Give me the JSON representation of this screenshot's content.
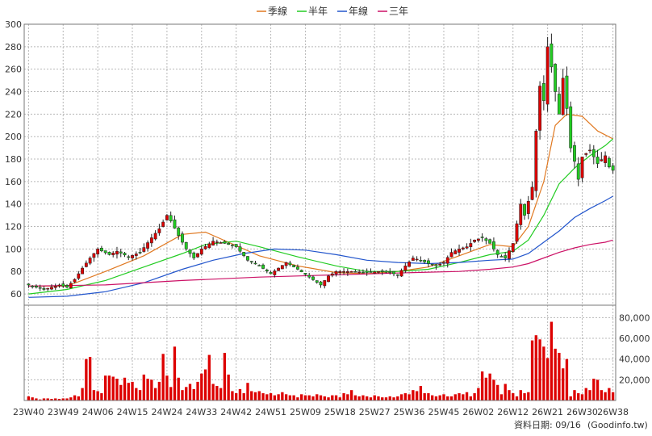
{
  "chart_data": [
    {
      "type": "candlestick",
      "legend": [
        {
          "name": "季線",
          "color": "#e07820"
        },
        {
          "name": "半年",
          "color": "#22cc22"
        },
        {
          "name": "年線",
          "color": "#2255cc"
        },
        {
          "name": "三年",
          "color": "#cc1166"
        }
      ],
      "ylim": [
        50,
        300
      ],
      "yticks": [
        60,
        80,
        100,
        120,
        140,
        160,
        180,
        200,
        220,
        240,
        260,
        280,
        300
      ],
      "grid": true,
      "up_color": "#dd0000",
      "down_color": "#22cc22",
      "x_ticks": [
        {
          "label": "23W40",
          "week": 0
        },
        {
          "label": "23W49",
          "week": 9
        },
        {
          "label": "24W06",
          "week": 18
        },
        {
          "label": "24W15",
          "week": 27
        },
        {
          "label": "24W24",
          "week": 36
        },
        {
          "label": "24W33",
          "week": 45
        },
        {
          "label": "24W42",
          "week": 54
        },
        {
          "label": "24W51",
          "week": 63
        },
        {
          "label": "25W09",
          "week": 72
        },
        {
          "label": "25W18",
          "week": 81
        },
        {
          "label": "25W27",
          "week": 90
        },
        {
          "label": "25W36",
          "week": 99
        },
        {
          "label": "25W45",
          "week": 108
        },
        {
          "label": "26W02",
          "week": 117
        },
        {
          "label": "26W12",
          "week": 126
        },
        {
          "label": "26W21",
          "week": 135
        },
        {
          "label": "26W30",
          "week": 144
        },
        {
          "label": "26W38",
          "week": 152
        }
      ],
      "close_anchors": [
        [
          0,
          68
        ],
        [
          4,
          64
        ],
        [
          8,
          68
        ],
        [
          10,
          66
        ],
        [
          12,
          73
        ],
        [
          14,
          83
        ],
        [
          16,
          92
        ],
        [
          18,
          100
        ],
        [
          21,
          95
        ],
        [
          23,
          98
        ],
        [
          26,
          93
        ],
        [
          29,
          97
        ],
        [
          32,
          110
        ],
        [
          34,
          118
        ],
        [
          36,
          130
        ],
        [
          37,
          125
        ],
        [
          39,
          112
        ],
        [
          41,
          100
        ],
        [
          43,
          92
        ],
        [
          45,
          100
        ],
        [
          48,
          107
        ],
        [
          51,
          105
        ],
        [
          54,
          102
        ],
        [
          57,
          90
        ],
        [
          60,
          85
        ],
        [
          63,
          78
        ],
        [
          67,
          88
        ],
        [
          70,
          82
        ],
        [
          73,
          75
        ],
        [
          76,
          68
        ],
        [
          78,
          76
        ],
        [
          80,
          80
        ],
        [
          84,
          80
        ],
        [
          88,
          79
        ],
        [
          91,
          80
        ],
        [
          94,
          79
        ],
        [
          96,
          77
        ],
        [
          98,
          85
        ],
        [
          100,
          92
        ],
        [
          102,
          90
        ],
        [
          104,
          87
        ],
        [
          106,
          85
        ],
        [
          108,
          88
        ],
        [
          110,
          97
        ],
        [
          112,
          100
        ],
        [
          114,
          102
        ],
        [
          116,
          108
        ],
        [
          118,
          110
        ],
        [
          120,
          105
        ],
        [
          122,
          95
        ],
        [
          124,
          92
        ],
        [
          126,
          105
        ],
        [
          128,
          140
        ],
        [
          129,
          130
        ],
        [
          131,
          155
        ],
        [
          132,
          205
        ],
        [
          133,
          245
        ],
        [
          134,
          232
        ],
        [
          135,
          280
        ],
        [
          136,
          262
        ],
        [
          137,
          240
        ],
        [
          138,
          220
        ],
        [
          139,
          252
        ],
        [
          140,
          225
        ],
        [
          141,
          190
        ],
        [
          142,
          178
        ],
        [
          143,
          162
        ],
        [
          144,
          182
        ],
        [
          146,
          188
        ],
        [
          148,
          176
        ],
        [
          150,
          183
        ],
        [
          151,
          173
        ],
        [
          152,
          170
        ]
      ],
      "ma_lines": [
        {
          "name": "季線",
          "color": "#e07820",
          "points": [
            [
              0,
              67
            ],
            [
              10,
              67
            ],
            [
              20,
              80
            ],
            [
              30,
              94
            ],
            [
              40,
              113
            ],
            [
              46,
              115
            ],
            [
              52,
              106
            ],
            [
              60,
              94
            ],
            [
              70,
              85
            ],
            [
              80,
              79
            ],
            [
              88,
              78
            ],
            [
              96,
              80
            ],
            [
              104,
              84
            ],
            [
              112,
              94
            ],
            [
              120,
              104
            ],
            [
              126,
              102
            ],
            [
              130,
              120
            ],
            [
              134,
              160
            ],
            [
              137,
              210
            ],
            [
              140,
              220
            ],
            [
              144,
              218
            ],
            [
              148,
              205
            ],
            [
              152,
              198
            ]
          ]
        },
        {
          "name": "半年",
          "color": "#22cc22",
          "points": [
            [
              0,
              60
            ],
            [
              10,
              64
            ],
            [
              20,
              72
            ],
            [
              30,
              84
            ],
            [
              40,
              96
            ],
            [
              46,
              104
            ],
            [
              54,
              107
            ],
            [
              60,
              102
            ],
            [
              70,
              93
            ],
            [
              80,
              85
            ],
            [
              88,
              80
            ],
            [
              96,
              80
            ],
            [
              104,
              82
            ],
            [
              112,
              88
            ],
            [
              120,
              95
            ],
            [
              126,
              98
            ],
            [
              130,
              108
            ],
            [
              134,
              130
            ],
            [
              138,
              158
            ],
            [
              142,
              172
            ],
            [
              146,
              183
            ],
            [
              150,
              192
            ],
            [
              152,
              198
            ]
          ]
        },
        {
          "name": "年線",
          "color": "#2255cc",
          "points": [
            [
              0,
              57
            ],
            [
              10,
              58
            ],
            [
              20,
              62
            ],
            [
              30,
              70
            ],
            [
              40,
              82
            ],
            [
              48,
              90
            ],
            [
              56,
              96
            ],
            [
              64,
              100
            ],
            [
              72,
              99
            ],
            [
              80,
              95
            ],
            [
              88,
              90
            ],
            [
              96,
              88
            ],
            [
              104,
              87
            ],
            [
              112,
              88
            ],
            [
              120,
              90
            ],
            [
              126,
              91
            ],
            [
              130,
              96
            ],
            [
              134,
              106
            ],
            [
              138,
              116
            ],
            [
              142,
              128
            ],
            [
              146,
              136
            ],
            [
              150,
              143
            ],
            [
              152,
              147
            ]
          ]
        },
        {
          "name": "三年",
          "color": "#cc1166",
          "points": [
            [
              0,
              67
            ],
            [
              20,
              68
            ],
            [
              40,
              72
            ],
            [
              60,
              75
            ],
            [
              80,
              77
            ],
            [
              100,
              79
            ],
            [
              112,
              80
            ],
            [
              120,
              82
            ],
            [
              126,
              84
            ],
            [
              130,
              87
            ],
            [
              134,
              92
            ],
            [
              138,
              97
            ],
            [
              142,
              101
            ],
            [
              146,
              104
            ],
            [
              150,
              106
            ],
            [
              152,
              108
            ]
          ]
        }
      ]
    },
    {
      "type": "bar",
      "ylim": [
        0,
        92000
      ],
      "yticks": [
        20000,
        40000,
        60000,
        80000
      ],
      "ytick_labels": [
        "20,000",
        "40,000",
        "60,000",
        "80,000"
      ],
      "bar_color": "#dd0000",
      "volumes": [
        4000,
        3000,
        2000,
        1000,
        2000,
        2000,
        1500,
        2000,
        1500,
        2000,
        2000,
        3000,
        5000,
        4000,
        12000,
        40000,
        42000,
        10000,
        9000,
        7000,
        24000,
        24000,
        23000,
        21000,
        15000,
        22000,
        17000,
        18000,
        12000,
        10000,
        25000,
        21000,
        20000,
        12000,
        18000,
        45000,
        24000,
        13000,
        52000,
        22000,
        10000,
        13000,
        16000,
        11000,
        18000,
        26000,
        30000,
        44000,
        16000,
        14000,
        12000,
        46000,
        25000,
        9000,
        7000,
        11000,
        7000,
        17000,
        9000,
        8000,
        9000,
        7000,
        6000,
        7000,
        5000,
        6000,
        8000,
        6000,
        5000,
        5000,
        3000,
        6000,
        5000,
        5000,
        4000,
        6000,
        5000,
        4000,
        3000,
        5000,
        5000,
        3000,
        7000,
        6000,
        10000,
        5000,
        4000,
        5000,
        4000,
        3000,
        5000,
        4000,
        3000,
        3000,
        4000,
        3000,
        4000,
        6000,
        7000,
        6000,
        10000,
        9000,
        14000,
        7000,
        7000,
        5000,
        4000,
        5000,
        6000,
        4000,
        4000,
        6000,
        7000,
        6000,
        8000,
        4000,
        7000,
        12000,
        28000,
        22000,
        26000,
        20000,
        15000,
        6000,
        16000,
        10000,
        7000,
        4000,
        10000,
        7000,
        8000,
        58000,
        63000,
        59000,
        52000,
        41000,
        76000,
        50000,
        46000,
        31000,
        40000,
        4000,
        10000,
        7000,
        6000,
        12000,
        10000,
        21000,
        20000,
        10000,
        8000,
        12000,
        8000
      ]
    }
  ],
  "footer": {
    "date_label": "資料日期: 09/16",
    "source": "(Goodinfo.tw)"
  }
}
